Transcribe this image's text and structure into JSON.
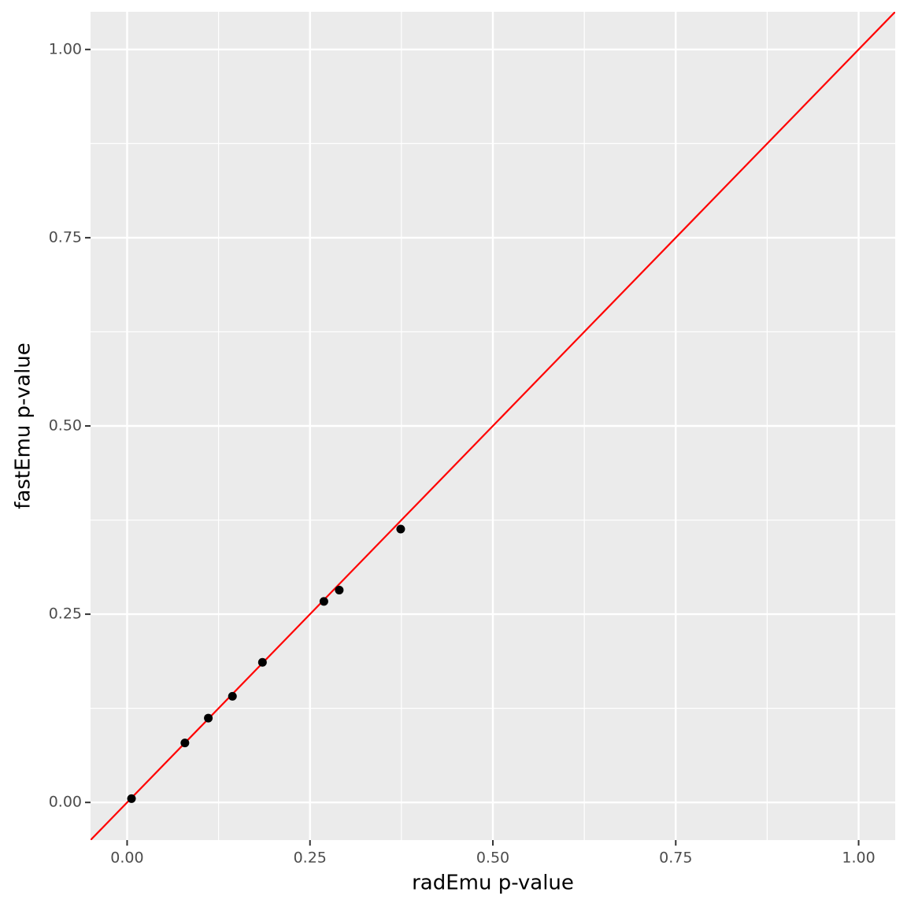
{
  "chart_data": {
    "type": "scatter",
    "x_label": "radEmu p-value",
    "y_label": "fastEmu p-value",
    "x": [
      0.006,
      0.079,
      0.111,
      0.144,
      0.185,
      0.269,
      0.29,
      0.374
    ],
    "values": [
      0.005,
      0.079,
      0.112,
      0.141,
      0.186,
      0.267,
      0.282,
      0.363
    ],
    "color": "#000000",
    "xlim": [
      -0.05,
      1.05
    ],
    "ylim": [
      -0.05,
      1.05
    ],
    "xticks": [
      {
        "value": 0,
        "label": "0.00"
      },
      {
        "value": 0.25,
        "label": "0.25"
      },
      {
        "value": 0.5,
        "label": "0.50"
      },
      {
        "value": 0.75,
        "label": "0.75"
      },
      {
        "value": 1,
        "label": "1.00"
      }
    ],
    "yticks": [
      {
        "value": 0,
        "label": "0.00"
      },
      {
        "value": 0.25,
        "label": "0.25"
      },
      {
        "value": 0.5,
        "label": "0.50"
      },
      {
        "value": 0.75,
        "label": "0.75"
      },
      {
        "value": 1,
        "label": "1.00"
      }
    ],
    "minor_ticks": [
      0.125,
      0.375,
      0.625,
      0.875
    ],
    "grid": true,
    "reference_line": {
      "slope": 1,
      "intercept": 0,
      "color": "#ff0000"
    }
  }
}
